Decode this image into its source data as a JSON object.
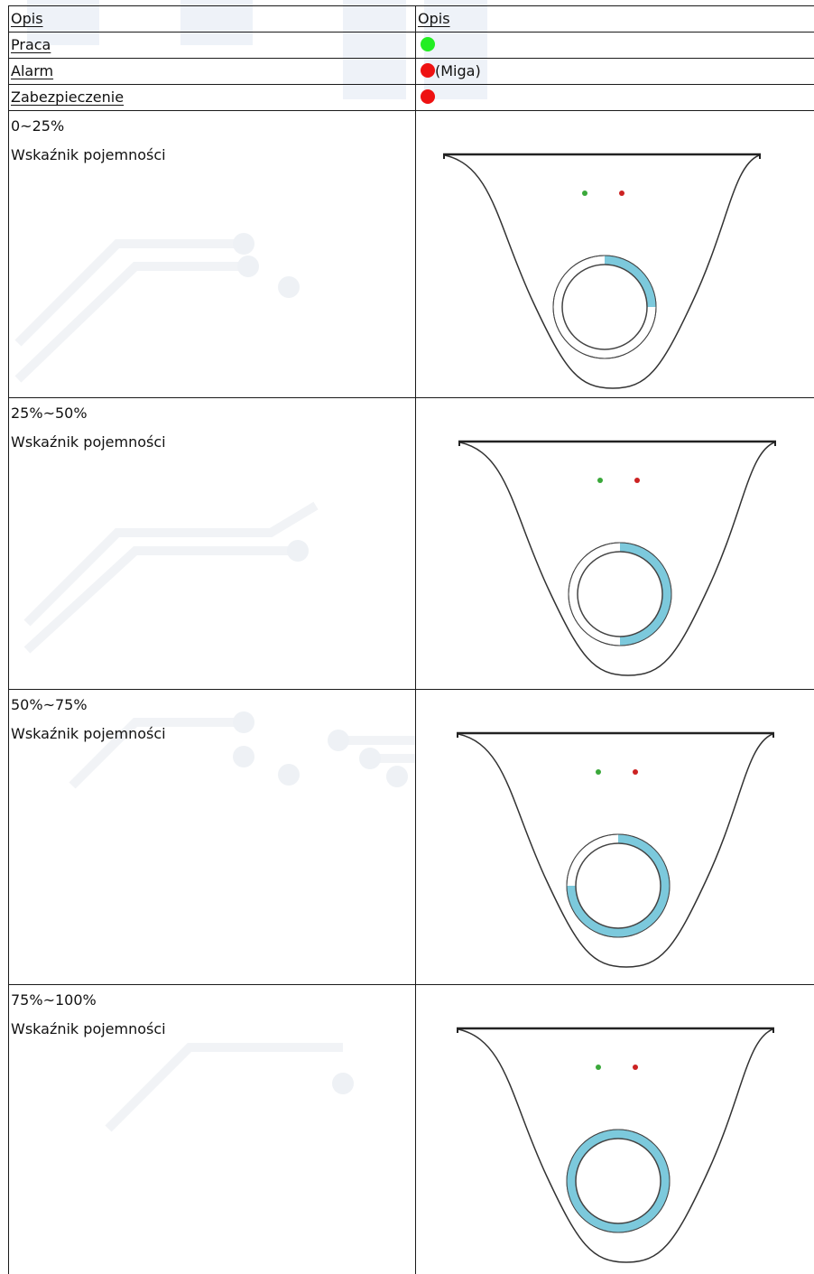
{
  "header": {
    "col1": "Opis",
    "col2": "Opis"
  },
  "status_rows": [
    {
      "label": "Praca",
      "dot_color": "#22ee22",
      "suffix": ""
    },
    {
      "label": "Alarm",
      "dot_color": "#ee1111",
      "suffix": "(Miga)"
    },
    {
      "label": "Zabezpieczenie",
      "dot_color": "#ee1111",
      "suffix": ""
    }
  ],
  "capacity_rows": [
    {
      "range": "0~25%",
      "label": "Wskaźnik pojemności",
      "fill_fraction": 0.25
    },
    {
      "range": "25%~50%",
      "label": "Wskaźnik pojemności",
      "fill_fraction": 0.5
    },
    {
      "range": "50%~75%",
      "label": "Wskaźnik pojemności",
      "fill_fraction": 0.75
    },
    {
      "range": "75%~100%",
      "label": "Wskaźnik pojemności",
      "fill_fraction": 1.0
    }
  ],
  "colors": {
    "ring_fill": "#7cc9dc",
    "led_green": "#3aa83a",
    "led_red": "#cc2222"
  }
}
